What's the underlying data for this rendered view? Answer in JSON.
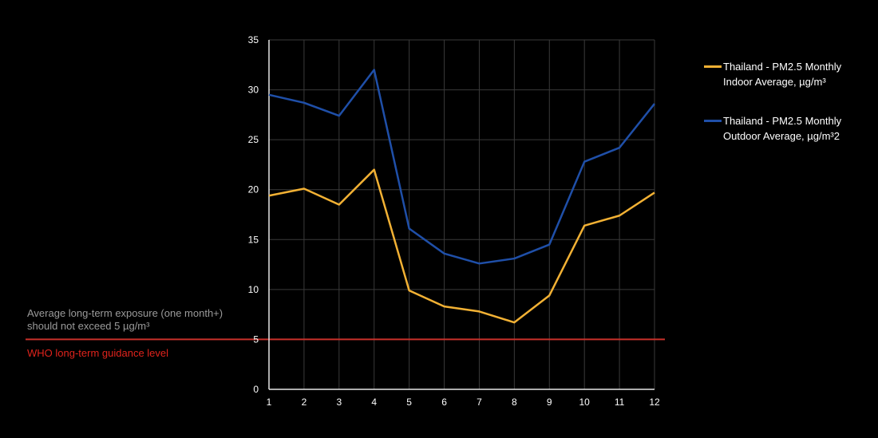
{
  "chart_data": {
    "type": "line",
    "x": [
      1,
      2,
      3,
      4,
      5,
      6,
      7,
      8,
      9,
      10,
      11,
      12
    ],
    "series": [
      {
        "name": "Thailand -  PM2.5 Monthly Indoor Average, µg/m³",
        "color": "#f2b134",
        "values": [
          19.4,
          20.1,
          18.5,
          22.0,
          9.9,
          8.3,
          7.8,
          6.7,
          9.4,
          16.4,
          17.4,
          19.7
        ]
      },
      {
        "name": "Thailand -  PM2.5 Monthly Outdoor Average, µg/m³2",
        "color": "#1f4fa8",
        "values": [
          29.5,
          28.7,
          27.4,
          32.0,
          16.1,
          13.6,
          12.6,
          13.1,
          14.5,
          22.8,
          24.2,
          28.6
        ]
      }
    ],
    "ylim": [
      0,
      35
    ],
    "yticks": [
      0,
      5,
      10,
      15,
      20,
      25,
      30,
      35
    ],
    "xticks": [
      1,
      2,
      3,
      4,
      5,
      6,
      7,
      8,
      9,
      10,
      11,
      12
    ],
    "grid": true,
    "legend_position": "right",
    "reference_line": {
      "value": 5,
      "color": "#c8302a",
      "label": "WHO long-term guidance level",
      "note": "Average long-term exposure (one month+) should not exceed 5 µg/m³"
    }
  },
  "legend": {
    "indoor_label_line1": "Thailand -  PM2.5 Monthly",
    "indoor_label_line2": "Indoor Average, µg/m³",
    "outdoor_label_line1": "Thailand -  PM2.5 Monthly",
    "outdoor_label_line2": "Outdoor Average, µg/m³2"
  },
  "colors": {
    "background": "#000000",
    "grid": "#3a3a3a",
    "axis": "#e6e6e6",
    "who_label": "#e0231c",
    "note_text": "#9a9a9a"
  }
}
